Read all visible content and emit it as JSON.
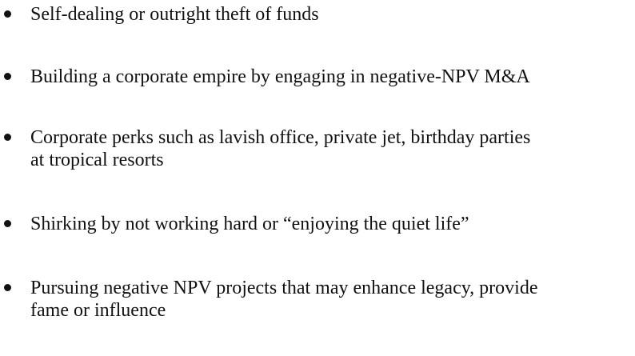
{
  "bullets": [
    {
      "text": "Self-dealing or outright theft of funds"
    },
    {
      "text": "Building a corporate empire by engaging in negative-NPV M&A"
    },
    {
      "text": "Corporate perks such as lavish office, private jet, birthday parties\nat tropical resorts"
    },
    {
      "text": "Shirking by not working hard or “enjoying the quiet life”"
    },
    {
      "text": "Pursuing negative NPV projects that may enhance legacy, provide\nfame or influence"
    }
  ]
}
